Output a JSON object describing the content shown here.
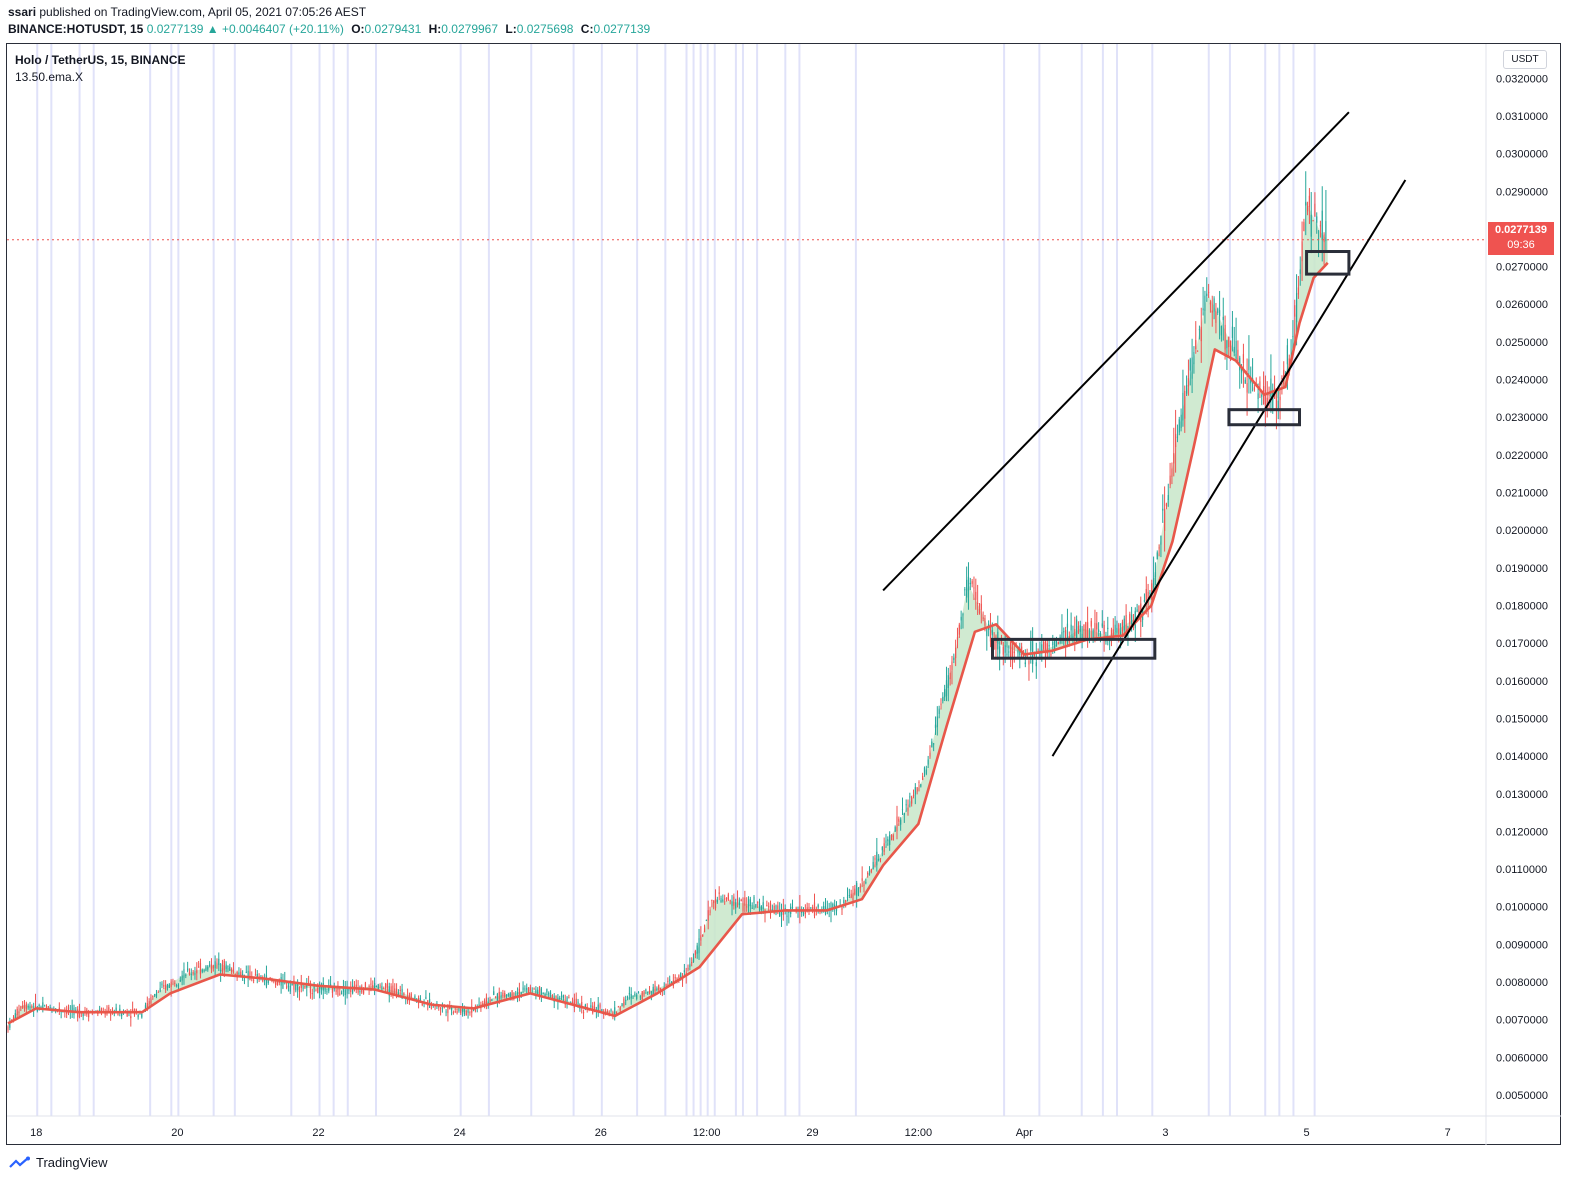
{
  "header": {
    "author": "ssari",
    "published_text": " published on TradingView.com, April 05, 2021 07:05:26 AEST",
    "symbol": "BINANCE:HOTUSDT, 15",
    "change": "0.0277139 ▲ +0.0046407 (+20.11%)",
    "o_label": "O:",
    "o_value": "0.0279431",
    "h_label": "H:",
    "h_value": "0.0279967",
    "l_label": "L:",
    "l_value": "0.0275698",
    "c_label": "C:",
    "c_value": "0.0277139"
  },
  "legend": {
    "title": "Holo / TetherUS, 15, BINANCE",
    "indicator": "13.50.ema.X"
  },
  "currency_badge": "USDT",
  "last_price": {
    "value": "0.0277139",
    "countdown": "09:36"
  },
  "footer": {
    "brand": "TradingView"
  },
  "colors": {
    "up": "#26a69a",
    "down": "#ef5350",
    "ema": "#e8574a",
    "fill": "#c8e6c9",
    "session": "#d6d8f7",
    "line": "#000000"
  },
  "chart_data": {
    "type": "line",
    "title": "Holo / TetherUS, 15, BINANCE",
    "y_axis_ticks": [
      "0.0050000",
      "0.0060000",
      "0.0070000",
      "0.0080000",
      "0.0090000",
      "0.0100000",
      "0.0110000",
      "0.0120000",
      "0.0130000",
      "0.0140000",
      "0.0150000",
      "0.0160000",
      "0.0170000",
      "0.0180000",
      "0.0190000",
      "0.0200000",
      "0.0210000",
      "0.0220000",
      "0.0230000",
      "0.0240000",
      "0.0250000",
      "0.0260000",
      "0.0270000",
      "0.0280000",
      "0.0290000",
      "0.0300000",
      "0.0310000",
      "0.0320000"
    ],
    "x_axis_ticks": [
      {
        "label": "18",
        "t": 0.4
      },
      {
        "label": "20",
        "t": 2.4
      },
      {
        "label": "22",
        "t": 4.4
      },
      {
        "label": "24",
        "t": 6.4
      },
      {
        "label": "26",
        "t": 8.4
      },
      {
        "label": "12:00",
        "t": 9.9
      },
      {
        "label": "29",
        "t": 11.4
      },
      {
        "label": "12:00",
        "t": 12.9
      },
      {
        "label": "Apr",
        "t": 14.4
      },
      {
        "label": "3",
        "t": 16.4
      },
      {
        "label": "5",
        "t": 18.4
      },
      {
        "label": "7",
        "t": 20.4
      }
    ],
    "x_range": [
      0,
      20.9
    ],
    "ylim": [
      0.0045,
      0.0326
    ],
    "series": [
      {
        "points": [
          [
            0,
            0.0068
          ],
          [
            0.2,
            0.0074
          ],
          [
            0.6,
            0.0073
          ],
          [
            1.0,
            0.0072
          ],
          [
            1.5,
            0.0072
          ],
          [
            1.9,
            0.0072
          ],
          [
            2.1,
            0.0077
          ],
          [
            2.5,
            0.0082
          ],
          [
            3.0,
            0.0085
          ],
          [
            3.3,
            0.0082
          ],
          [
            3.8,
            0.008
          ],
          [
            4.4,
            0.0078
          ],
          [
            4.8,
            0.0078
          ],
          [
            5.2,
            0.0079
          ],
          [
            5.6,
            0.0077
          ],
          [
            6.0,
            0.0074
          ],
          [
            6.5,
            0.0072
          ],
          [
            6.9,
            0.0076
          ],
          [
            7.4,
            0.0078
          ],
          [
            7.8,
            0.0076
          ],
          [
            8.2,
            0.0073
          ],
          [
            8.6,
            0.0072
          ],
          [
            8.8,
            0.0076
          ],
          [
            9.3,
            0.0079
          ],
          [
            9.6,
            0.0082
          ],
          [
            9.8,
            0.009
          ],
          [
            10.0,
            0.0102
          ],
          [
            10.4,
            0.0101
          ],
          [
            10.9,
            0.0099
          ],
          [
            11.4,
            0.0099
          ],
          [
            11.8,
            0.01
          ],
          [
            12.1,
            0.0106
          ],
          [
            12.4,
            0.0115
          ],
          [
            12.7,
            0.0125
          ],
          [
            13.0,
            0.0135
          ],
          [
            13.2,
            0.0152
          ],
          [
            13.4,
            0.0165
          ],
          [
            13.6,
            0.0186
          ],
          [
            13.8,
            0.0178
          ],
          [
            14.0,
            0.017
          ],
          [
            14.4,
            0.0167
          ],
          [
            14.8,
            0.0169
          ],
          [
            15.2,
            0.0174
          ],
          [
            15.6,
            0.0172
          ],
          [
            16.0,
            0.0177
          ],
          [
            16.2,
            0.0183
          ],
          [
            16.4,
            0.0205
          ],
          [
            16.6,
            0.0228
          ],
          [
            16.8,
            0.0245
          ],
          [
            17.0,
            0.0263
          ],
          [
            17.2,
            0.0255
          ],
          [
            17.5,
            0.0242
          ],
          [
            17.8,
            0.0236
          ],
          [
            18.0,
            0.0235
          ],
          [
            18.2,
            0.0248
          ],
          [
            18.4,
            0.0287
          ],
          [
            18.6,
            0.0279
          ],
          [
            18.7,
            0.0277
          ]
        ]
      },
      {
        "name": "13.50.ema.X",
        "points": [
          [
            0,
            0.0069
          ],
          [
            0.4,
            0.0073
          ],
          [
            1.0,
            0.0072
          ],
          [
            1.9,
            0.0072
          ],
          [
            2.3,
            0.0077
          ],
          [
            3.0,
            0.0082
          ],
          [
            3.6,
            0.0081
          ],
          [
            4.4,
            0.0079
          ],
          [
            5.2,
            0.0078
          ],
          [
            6.0,
            0.0074
          ],
          [
            6.6,
            0.0073
          ],
          [
            7.4,
            0.0077
          ],
          [
            8.2,
            0.0073
          ],
          [
            8.6,
            0.0071
          ],
          [
            9.2,
            0.0077
          ],
          [
            9.8,
            0.0084
          ],
          [
            10.4,
            0.0098
          ],
          [
            11.0,
            0.0099
          ],
          [
            11.6,
            0.0099
          ],
          [
            12.1,
            0.0102
          ],
          [
            12.4,
            0.0111
          ],
          [
            12.9,
            0.0122
          ],
          [
            13.3,
            0.0148
          ],
          [
            13.7,
            0.0173
          ],
          [
            14.0,
            0.0175
          ],
          [
            14.4,
            0.0167
          ],
          [
            14.8,
            0.0168
          ],
          [
            15.3,
            0.0171
          ],
          [
            15.8,
            0.0172
          ],
          [
            16.2,
            0.018
          ],
          [
            16.5,
            0.0197
          ],
          [
            16.8,
            0.0222
          ],
          [
            17.1,
            0.0248
          ],
          [
            17.4,
            0.0245
          ],
          [
            17.8,
            0.0236
          ],
          [
            18.1,
            0.0238
          ],
          [
            18.3,
            0.0255
          ],
          [
            18.5,
            0.0267
          ],
          [
            18.7,
            0.0271
          ]
        ]
      }
    ],
    "trendlines": [
      {
        "from": [
          12.4,
          0.0184
        ],
        "to": [
          19.0,
          0.0311
        ]
      },
      {
        "from": [
          14.8,
          0.014
        ],
        "to": [
          19.8,
          0.0293
        ]
      }
    ],
    "zones": [
      {
        "t0": 13.95,
        "t1": 16.25,
        "y0": 0.0166,
        "y1": 0.0171
      },
      {
        "t0": 17.3,
        "t1": 18.3,
        "y0": 0.0228,
        "y1": 0.0232
      },
      {
        "t0": 18.4,
        "t1": 19.0,
        "y0": 0.0268,
        "y1": 0.0274
      }
    ],
    "session_bands_t": [
      0.4,
      0.6,
      1.0,
      1.2,
      2.0,
      2.3,
      2.4,
      2.9,
      3.2,
      4.0,
      4.4,
      4.6,
      4.8,
      5.2,
      6.4,
      6.8,
      7.4,
      8.0,
      8.4,
      8.9,
      9.3,
      9.6,
      9.7,
      9.8,
      9.9,
      10.0,
      10.3,
      10.4,
      10.6,
      11.0,
      11.2,
      12.0,
      14.1,
      14.6,
      15.2,
      15.5,
      15.7,
      16.2,
      17.0,
      17.3,
      17.8,
      18.0,
      18.2,
      18.5
    ],
    "current_price": 0.0277139
  }
}
